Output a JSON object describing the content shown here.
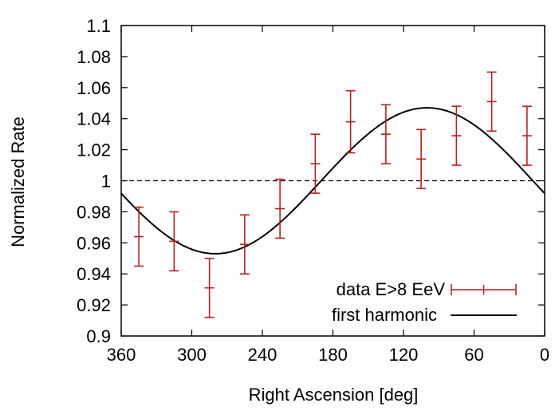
{
  "chart_data": {
    "type": "scatter",
    "title": "",
    "xlabel": "Right Ascension [deg]",
    "ylabel": "Normalized Rate",
    "xlim": [
      360,
      0
    ],
    "ylim": [
      0.9,
      1.1
    ],
    "x_reversed": true,
    "x_ticks": [
      360,
      300,
      240,
      180,
      120,
      60,
      0
    ],
    "x_tick_labels": [
      "360",
      "300",
      "240",
      "180",
      "120",
      "60",
      "0"
    ],
    "y_ticks": [
      0.9,
      0.92,
      0.94,
      0.96,
      0.98,
      1.0,
      1.02,
      1.04,
      1.06,
      1.08,
      1.1
    ],
    "y_tick_labels": [
      "0.9",
      "0.92",
      "0.94",
      "0.96",
      "0.98",
      "1",
      "1.02",
      "1.04",
      "1.06",
      "1.08",
      "1.1"
    ],
    "grid": false,
    "legend_position": "bottom-right",
    "reference_line": {
      "y": 1.0,
      "style": "dashed"
    },
    "series": [
      {
        "name": "data E>8 EeV",
        "kind": "errorbar",
        "color": "#b22222",
        "x": [
          345,
          315,
          285,
          255,
          225,
          195,
          165,
          135,
          105,
          75,
          45,
          15
        ],
        "y": [
          0.964,
          0.961,
          0.931,
          0.959,
          0.982,
          1.011,
          1.038,
          1.03,
          1.014,
          1.029,
          1.051,
          1.029
        ],
        "yerr": [
          0.019,
          0.019,
          0.019,
          0.019,
          0.019,
          0.019,
          0.02,
          0.019,
          0.019,
          0.019,
          0.019,
          0.019
        ]
      },
      {
        "name": "first harmonic",
        "kind": "line",
        "color": "#000000",
        "amplitude": 0.047,
        "phase_deg": 100,
        "offset": 1.0
      }
    ]
  }
}
